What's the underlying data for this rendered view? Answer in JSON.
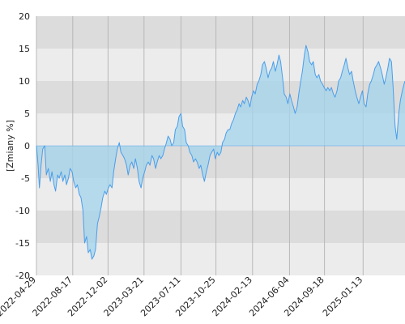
{
  "chart_data": {
    "type": "area",
    "ylabel": "[Zmiany %]",
    "ylim": [
      -20,
      20
    ],
    "yticks": [
      -20,
      -15,
      -10,
      -5,
      0,
      5,
      10,
      15,
      20
    ],
    "xlim": [
      "2022-04-29",
      "2025-05-20"
    ],
    "xticks": [
      "2022-04-29",
      "2022-08-17",
      "2022-12-02",
      "2023-03-21",
      "2023-07-11",
      "2023-10-25",
      "2024-02-13",
      "2024-06-04",
      "2024-09-18",
      "2025-01-13"
    ],
    "grid": true,
    "series": [
      {
        "line_color": "#4a9eea",
        "fill_color": "#a3d4ec",
        "points": [
          [
            "2022-04-29",
            0.0
          ],
          [
            "2022-05-04",
            -3.0
          ],
          [
            "2022-05-08",
            -6.5
          ],
          [
            "2022-05-13",
            -3.0
          ],
          [
            "2022-05-18",
            -0.5
          ],
          [
            "2022-05-24",
            0.0
          ],
          [
            "2022-05-29",
            -4.5
          ],
          [
            "2022-06-04",
            -3.5
          ],
          [
            "2022-06-10",
            -5.5
          ],
          [
            "2022-06-15",
            -4.0
          ],
          [
            "2022-06-21",
            -6.0
          ],
          [
            "2022-06-26",
            -7.0
          ],
          [
            "2022-07-02",
            -4.5
          ],
          [
            "2022-07-07",
            -5.0
          ],
          [
            "2022-07-13",
            -4.0
          ],
          [
            "2022-07-18",
            -5.5
          ],
          [
            "2022-07-24",
            -4.5
          ],
          [
            "2022-07-29",
            -6.0
          ],
          [
            "2022-08-04",
            -5.0
          ],
          [
            "2022-08-09",
            -3.5
          ],
          [
            "2022-08-15",
            -4.0
          ],
          [
            "2022-08-20",
            -5.5
          ],
          [
            "2022-08-26",
            -6.5
          ],
          [
            "2022-08-31",
            -6.0
          ],
          [
            "2022-09-06",
            -7.5
          ],
          [
            "2022-09-11",
            -8.0
          ],
          [
            "2022-09-17",
            -10.0
          ],
          [
            "2022-09-22",
            -15.0
          ],
          [
            "2022-09-28",
            -14.0
          ],
          [
            "2022-10-03",
            -16.5
          ],
          [
            "2022-10-09",
            -16.0
          ],
          [
            "2022-10-14",
            -17.5
          ],
          [
            "2022-10-20",
            -17.0
          ],
          [
            "2022-10-25",
            -16.0
          ],
          [
            "2022-10-31",
            -12.0
          ],
          [
            "2022-11-05",
            -11.0
          ],
          [
            "2022-11-11",
            -9.5
          ],
          [
            "2022-11-16",
            -8.0
          ],
          [
            "2022-11-22",
            -7.0
          ],
          [
            "2022-11-27",
            -7.5
          ],
          [
            "2022-12-03",
            -6.5
          ],
          [
            "2022-12-08",
            -6.0
          ],
          [
            "2022-12-14",
            -6.5
          ],
          [
            "2022-12-19",
            -4.0
          ],
          [
            "2022-12-25",
            -2.0
          ],
          [
            "2022-12-30",
            -0.5
          ],
          [
            "2023-01-05",
            0.5
          ],
          [
            "2023-01-10",
            -1.0
          ],
          [
            "2023-01-16",
            -1.5
          ],
          [
            "2023-01-21",
            -2.0
          ],
          [
            "2023-01-27",
            -3.0
          ],
          [
            "2023-02-01",
            -4.5
          ],
          [
            "2023-02-07",
            -3.0
          ],
          [
            "2023-02-12",
            -2.5
          ],
          [
            "2023-02-18",
            -3.5
          ],
          [
            "2023-02-23",
            -2.0
          ],
          [
            "2023-03-01",
            -3.5
          ],
          [
            "2023-03-06",
            -5.5
          ],
          [
            "2023-03-12",
            -6.5
          ],
          [
            "2023-03-17",
            -5.0
          ],
          [
            "2023-03-23",
            -4.0
          ],
          [
            "2023-03-28",
            -3.0
          ],
          [
            "2023-04-03",
            -2.5
          ],
          [
            "2023-04-08",
            -3.0
          ],
          [
            "2023-04-14",
            -1.5
          ],
          [
            "2023-04-19",
            -2.0
          ],
          [
            "2023-04-25",
            -3.5
          ],
          [
            "2023-04-30",
            -2.5
          ],
          [
            "2023-05-06",
            -1.5
          ],
          [
            "2023-05-11",
            -2.0
          ],
          [
            "2023-05-17",
            -1.5
          ],
          [
            "2023-05-22",
            -0.5
          ],
          [
            "2023-05-28",
            0.5
          ],
          [
            "2023-06-02",
            1.5
          ],
          [
            "2023-06-08",
            1.0
          ],
          [
            "2023-06-13",
            0.0
          ],
          [
            "2023-06-19",
            0.5
          ],
          [
            "2023-06-24",
            2.5
          ],
          [
            "2023-06-30",
            3.0
          ],
          [
            "2023-07-05",
            4.5
          ],
          [
            "2023-07-11",
            5.0
          ],
          [
            "2023-07-16",
            3.0
          ],
          [
            "2023-07-22",
            2.5
          ],
          [
            "2023-07-27",
            0.5
          ],
          [
            "2023-08-02",
            0.0
          ],
          [
            "2023-08-07",
            -1.0
          ],
          [
            "2023-08-13",
            -1.5
          ],
          [
            "2023-08-18",
            -2.5
          ],
          [
            "2023-08-24",
            -2.0
          ],
          [
            "2023-08-29",
            -2.5
          ],
          [
            "2023-09-04",
            -3.5
          ],
          [
            "2023-09-09",
            -3.0
          ],
          [
            "2023-09-15",
            -4.5
          ],
          [
            "2023-09-20",
            -5.5
          ],
          [
            "2023-09-26",
            -4.0
          ],
          [
            "2023-10-01",
            -3.0
          ],
          [
            "2023-10-07",
            -1.5
          ],
          [
            "2023-10-12",
            -1.0
          ],
          [
            "2023-10-18",
            -0.5
          ],
          [
            "2023-10-23",
            -2.0
          ],
          [
            "2023-10-29",
            -1.0
          ],
          [
            "2023-11-03",
            -1.5
          ],
          [
            "2023-11-09",
            -1.0
          ],
          [
            "2023-11-14",
            0.5
          ],
          [
            "2023-11-20",
            1.0
          ],
          [
            "2023-11-25",
            2.0
          ],
          [
            "2023-12-01",
            2.5
          ],
          [
            "2023-12-06",
            2.5
          ],
          [
            "2023-12-12",
            3.5
          ],
          [
            "2023-12-17",
            4.0
          ],
          [
            "2023-12-23",
            5.0
          ],
          [
            "2023-12-28",
            5.5
          ],
          [
            "2024-01-03",
            6.5
          ],
          [
            "2024-01-08",
            6.0
          ],
          [
            "2024-01-14",
            7.0
          ],
          [
            "2024-01-19",
            6.5
          ],
          [
            "2024-01-25",
            7.5
          ],
          [
            "2024-01-30",
            7.0
          ],
          [
            "2024-02-05",
            6.0
          ],
          [
            "2024-02-10",
            7.5
          ],
          [
            "2024-02-16",
            8.5
          ],
          [
            "2024-02-21",
            8.0
          ],
          [
            "2024-02-27",
            9.5
          ],
          [
            "2024-03-03",
            10.0
          ],
          [
            "2024-03-09",
            11.0
          ],
          [
            "2024-03-14",
            12.5
          ],
          [
            "2024-03-20",
            13.0
          ],
          [
            "2024-03-25",
            12.0
          ],
          [
            "2024-03-31",
            10.5
          ],
          [
            "2024-04-05",
            11.5
          ],
          [
            "2024-04-11",
            12.0
          ],
          [
            "2024-04-16",
            13.0
          ],
          [
            "2024-04-22",
            11.5
          ],
          [
            "2024-04-27",
            12.5
          ],
          [
            "2024-05-03",
            14.0
          ],
          [
            "2024-05-08",
            13.0
          ],
          [
            "2024-05-14",
            10.5
          ],
          [
            "2024-05-19",
            8.0
          ],
          [
            "2024-05-25",
            7.5
          ],
          [
            "2024-05-30",
            6.5
          ],
          [
            "2024-06-05",
            8.0
          ],
          [
            "2024-06-10",
            7.0
          ],
          [
            "2024-06-16",
            6.0
          ],
          [
            "2024-06-21",
            5.0
          ],
          [
            "2024-06-27",
            6.0
          ],
          [
            "2024-07-02",
            8.0
          ],
          [
            "2024-07-08",
            10.0
          ],
          [
            "2024-07-13",
            11.5
          ],
          [
            "2024-07-19",
            14.0
          ],
          [
            "2024-07-24",
            15.5
          ],
          [
            "2024-07-30",
            14.5
          ],
          [
            "2024-08-04",
            13.0
          ],
          [
            "2024-08-10",
            12.5
          ],
          [
            "2024-08-15",
            13.0
          ],
          [
            "2024-08-21",
            11.0
          ],
          [
            "2024-08-26",
            10.5
          ],
          [
            "2024-09-01",
            11.0
          ],
          [
            "2024-09-06",
            10.0
          ],
          [
            "2024-09-12",
            9.5
          ],
          [
            "2024-09-17",
            9.0
          ],
          [
            "2024-09-23",
            8.5
          ],
          [
            "2024-09-28",
            9.0
          ],
          [
            "2024-10-04",
            8.5
          ],
          [
            "2024-10-09",
            9.0
          ],
          [
            "2024-10-15",
            8.0
          ],
          [
            "2024-10-20",
            7.5
          ],
          [
            "2024-10-26",
            8.5
          ],
          [
            "2024-10-31",
            10.0
          ],
          [
            "2024-11-06",
            10.5
          ],
          [
            "2024-11-11",
            11.5
          ],
          [
            "2024-11-17",
            12.5
          ],
          [
            "2024-11-22",
            13.5
          ],
          [
            "2024-11-28",
            12.0
          ],
          [
            "2024-12-03",
            11.0
          ],
          [
            "2024-12-09",
            11.5
          ],
          [
            "2024-12-14",
            10.0
          ],
          [
            "2024-12-20",
            8.5
          ],
          [
            "2024-12-25",
            7.5
          ],
          [
            "2024-12-31",
            6.5
          ],
          [
            "2025-01-05",
            7.5
          ],
          [
            "2025-01-11",
            8.5
          ],
          [
            "2025-01-16",
            6.5
          ],
          [
            "2025-01-22",
            6.0
          ],
          [
            "2025-01-27",
            8.0
          ],
          [
            "2025-02-02",
            9.5
          ],
          [
            "2025-02-07",
            10.0
          ],
          [
            "2025-02-13",
            11.0
          ],
          [
            "2025-02-18",
            12.0
          ],
          [
            "2025-02-24",
            12.5
          ],
          [
            "2025-03-01",
            13.0
          ],
          [
            "2025-03-07",
            12.0
          ],
          [
            "2025-03-12",
            11.0
          ],
          [
            "2025-03-18",
            9.5
          ],
          [
            "2025-03-23",
            10.5
          ],
          [
            "2025-03-29",
            12.0
          ],
          [
            "2025-04-03",
            13.5
          ],
          [
            "2025-04-09",
            13.0
          ],
          [
            "2025-04-14",
            9.0
          ],
          [
            "2025-04-20",
            3.0
          ],
          [
            "2025-04-25",
            1.0
          ],
          [
            "2025-05-01",
            5.0
          ],
          [
            "2025-05-06",
            7.0
          ],
          [
            "2025-05-12",
            8.5
          ],
          [
            "2025-05-17",
            9.5
          ],
          [
            "2025-05-20",
            10.0
          ]
        ]
      }
    ]
  }
}
